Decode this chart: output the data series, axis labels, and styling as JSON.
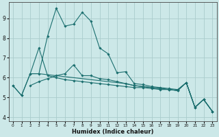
{
  "bg_color": "#cce8e8",
  "grid_color": "#aacccc",
  "line_color": "#1a6e6e",
  "xlabel": "Humidex (Indice chaleur)",
  "xlim": [
    -0.5,
    23.5
  ],
  "ylim": [
    3.8,
    9.8
  ],
  "yticks": [
    4,
    5,
    6,
    7,
    8,
    9
  ],
  "xticks": [
    0,
    1,
    2,
    3,
    4,
    5,
    6,
    7,
    8,
    9,
    10,
    11,
    12,
    13,
    14,
    15,
    16,
    17,
    18,
    19,
    20,
    21,
    22,
    23
  ],
  "lines": [
    {
      "x": [
        0,
        1,
        2,
        3,
        4,
        5,
        6,
        7,
        8,
        9,
        10,
        11,
        12,
        13,
        14,
        15,
        16,
        17,
        18,
        19,
        20,
        21,
        22,
        23
      ],
      "y": [
        5.6,
        5.1,
        6.2,
        6.2,
        8.1,
        9.5,
        8.6,
        8.7,
        9.3,
        8.85,
        7.5,
        7.2,
        6.25,
        6.3,
        5.7,
        5.65,
        5.55,
        5.5,
        5.45,
        5.4,
        5.75,
        4.5,
        4.9,
        4.3
      ],
      "markers": true
    },
    {
      "x": [
        0,
        1,
        2,
        3,
        4,
        5,
        6,
        7,
        8,
        9,
        10,
        11,
        12,
        13,
        14,
        15,
        16,
        17,
        18,
        19,
        20,
        21,
        22,
        23
      ],
      "y": [
        5.6,
        5.1,
        6.2,
        7.5,
        6.1,
        6.0,
        5.9,
        5.85,
        5.8,
        5.75,
        5.7,
        5.65,
        5.6,
        5.55,
        5.5,
        5.5,
        5.45,
        5.4,
        5.4,
        5.35,
        5.75,
        4.5,
        4.9,
        4.3
      ],
      "markers": true
    },
    {
      "x": [
        2,
        3,
        4,
        5,
        6,
        7,
        8,
        9,
        10,
        11,
        12,
        13,
        14,
        15,
        16,
        17,
        18,
        19,
        20,
        21,
        22,
        23
      ],
      "y": [
        5.6,
        5.8,
        5.95,
        6.1,
        6.2,
        6.65,
        6.1,
        6.1,
        5.95,
        5.9,
        5.8,
        5.7,
        5.6,
        5.55,
        5.5,
        5.45,
        5.4,
        5.35,
        5.75,
        4.5,
        4.9,
        4.3
      ],
      "markers": true
    },
    {
      "x": [
        2,
        3,
        4,
        5,
        6,
        7,
        8,
        9,
        10,
        11,
        12,
        13,
        14,
        15,
        16,
        17,
        18,
        19,
        20,
        21,
        22,
        23
      ],
      "y": [
        6.2,
        6.2,
        6.15,
        6.1,
        6.05,
        6.0,
        5.95,
        5.9,
        5.85,
        5.8,
        5.75,
        5.7,
        5.6,
        5.55,
        5.5,
        5.45,
        5.4,
        5.35,
        5.75,
        4.5,
        4.9,
        4.3
      ],
      "markers": false
    }
  ]
}
